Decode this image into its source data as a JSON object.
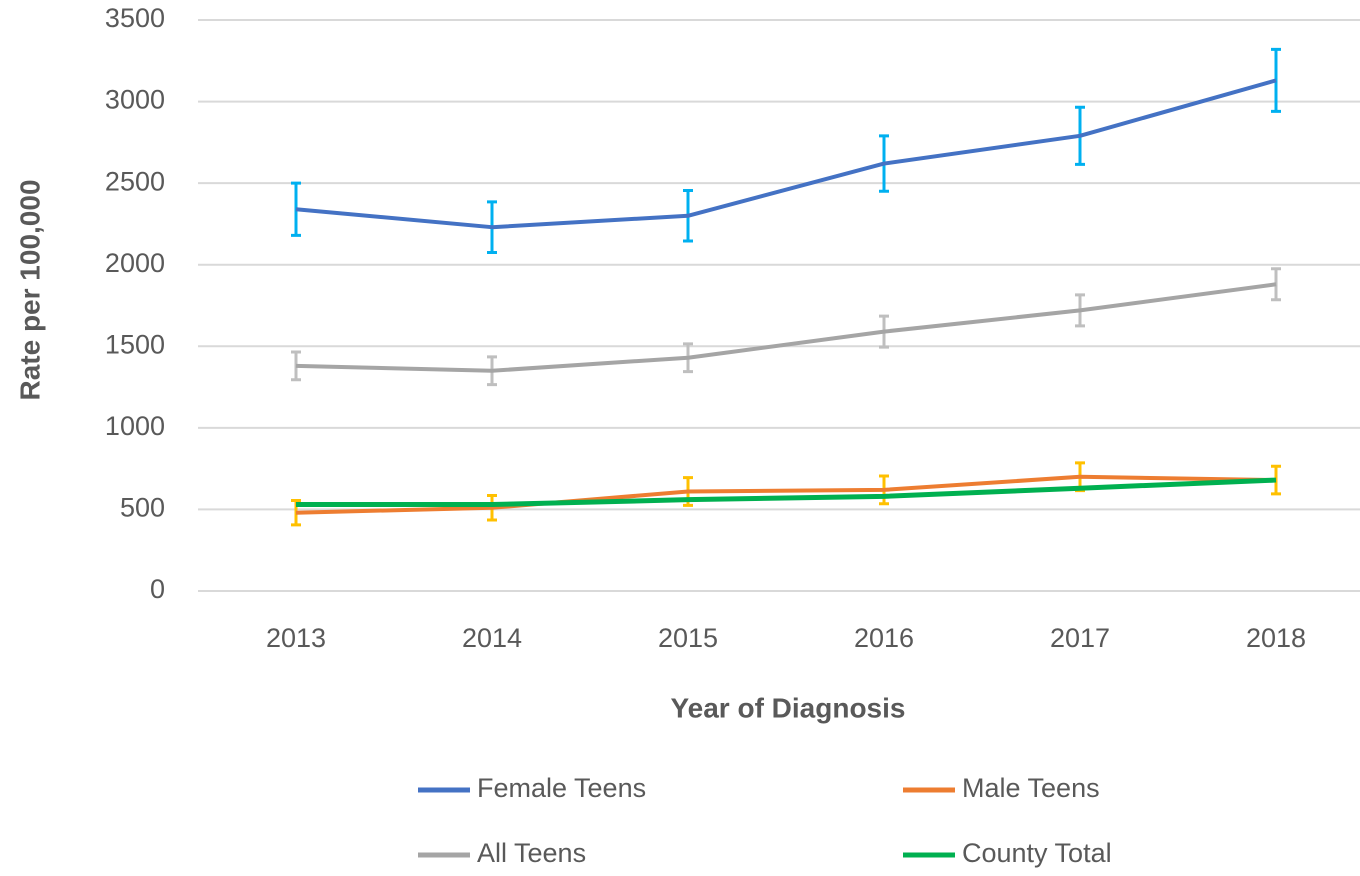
{
  "chart_data": {
    "type": "line",
    "x_label": "Year of Diagnosis",
    "y_label": "Rate per 100,000",
    "categories": [
      "2013",
      "2014",
      "2015",
      "2016",
      "2017",
      "2018"
    ],
    "series": [
      {
        "name": "Female Teens",
        "color": "#4472c4",
        "error_color": "#00b0f0",
        "values": [
          2340,
          2230,
          2300,
          2620,
          2790,
          3130
        ],
        "errors": [
          160,
          155,
          155,
          170,
          175,
          190
        ]
      },
      {
        "name": "Male Teens",
        "color": "#ed7d31",
        "error_color": "#ffc000",
        "values": [
          480,
          510,
          610,
          620,
          700,
          680
        ],
        "errors": [
          75,
          75,
          85,
          85,
          85,
          85
        ]
      },
      {
        "name": "All Teens",
        "color": "#a5a5a5",
        "error_color": "#bfbfbf",
        "values": [
          1380,
          1350,
          1430,
          1590,
          1720,
          1880
        ],
        "errors": [
          85,
          85,
          85,
          95,
          95,
          95
        ]
      },
      {
        "name": "County Total",
        "color": "#00b050",
        "values": [
          530,
          530,
          560,
          580,
          630,
          680
        ]
      }
    ],
    "ylim": [
      0,
      3500
    ],
    "yticks": [
      0,
      500,
      1000,
      1500,
      2000,
      2500,
      3000,
      3500
    ],
    "grid": true,
    "legend": "bottom"
  }
}
